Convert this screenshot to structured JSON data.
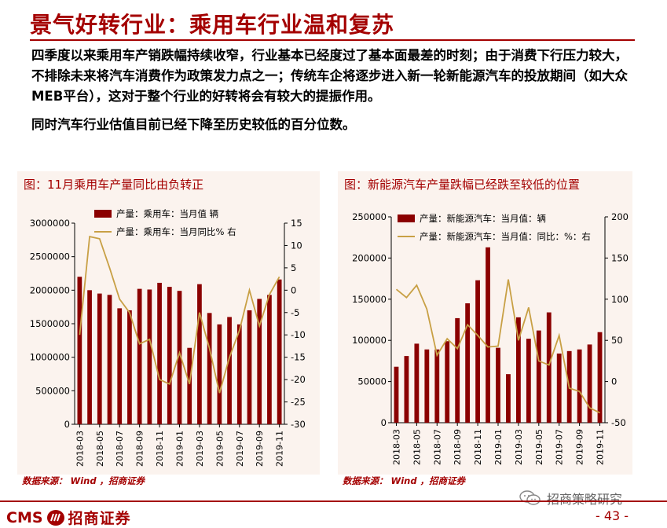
{
  "title": "景气好转行业：乘用车行业温和复苏",
  "paragraph1": "四季度以来乘用车产销跌幅持续收窄，行业基本已经度过了基本面最差的时刻；由于消费下行压力较大，不排除未来将汽车消费作为政策发力点之一；传统车企将逐步进入新一轮新能源汽车的投放期间（如大众MEB平台），这对于整个行业的好转将会有较大的提振作用。",
  "paragraph2": "同时汽车行业估值目前已经下降至历史较低的百分位数。",
  "source_left": "数据来源： Wind ，招商证券",
  "source_right": "数据来源： Wind ，招商证券",
  "wechat_label": "招商策略研究",
  "brand_latin": "CMS",
  "brand_name": "招商证券",
  "page_number": "- 43 -",
  "colors": {
    "brand": "#a40000",
    "bar": "#8b0000",
    "line": "#c8a045",
    "panel_bg": "#fbf3ee"
  },
  "chart_data": [
    {
      "type": "bar",
      "title": "图：11月乘用车产量同比由负转正",
      "legend": [
        "产量：乘用车：当月值  辆",
        "产量：乘用车：当月同比%  右"
      ],
      "categories": [
        "2018-03",
        "2018-04",
        "2018-05",
        "2018-06",
        "2018-07",
        "2018-08",
        "2018-09",
        "2018-10",
        "2018-11",
        "2018-12",
        "2019-01",
        "2019-02",
        "2019-03",
        "2019-04",
        "2019-05",
        "2019-06",
        "2019-07",
        "2019-08",
        "2019-09",
        "2019-10",
        "2019-11"
      ],
      "tick_labels": [
        "2018-03",
        "2018-05",
        "2018-07",
        "2018-09",
        "2018-11",
        "2019-01",
        "2019-03",
        "2019-05",
        "2019-07",
        "2019-09",
        "2019-11"
      ],
      "series": [
        {
          "name": "产量：乘用车：当月值  辆",
          "kind": "bar",
          "axis": "left",
          "values": [
            2200000,
            2000000,
            1950000,
            1930000,
            1730000,
            1700000,
            2020000,
            2010000,
            2110000,
            2050000,
            1990000,
            1140000,
            2090000,
            1660000,
            1490000,
            1600000,
            1490000,
            1700000,
            1870000,
            1930000,
            2160000
          ]
        },
        {
          "name": "产量：乘用车：当月同比%  右",
          "kind": "line",
          "axis": "right",
          "values": [
            -10,
            12,
            11.5,
            5,
            -2,
            -5,
            -12,
            -11,
            -20,
            -21,
            -14,
            -21,
            -5,
            -13,
            -23,
            -15,
            -9,
            0,
            -8,
            -1,
            3
          ]
        }
      ],
      "ylim_left": [
        0,
        3000000
      ],
      "yticks_left": [
        "0",
        "500000",
        "1000000",
        "1500000",
        "2000000",
        "2500000",
        "3000000"
      ],
      "ylim_right": [
        -30,
        15
      ],
      "yticks_right": [
        "15",
        "10",
        "5",
        "0",
        "-5",
        "-10",
        "-15",
        "-20",
        "-25",
        "-30"
      ]
    },
    {
      "type": "bar",
      "title": "图：新能源汽车产量跌幅已经跌至较低的位置",
      "legend": [
        "产量：新能源汽车：当月值：辆",
        "产量：新能源汽车：当月值：同比：%：右"
      ],
      "categories": [
        "2018-03",
        "2018-04",
        "2018-05",
        "2018-06",
        "2018-07",
        "2018-08",
        "2018-09",
        "2018-10",
        "2018-11",
        "2018-12",
        "2019-01",
        "2019-02",
        "2019-03",
        "2019-04",
        "2019-05",
        "2019-06",
        "2019-07",
        "2019-08",
        "2019-09",
        "2019-10",
        "2019-11"
      ],
      "tick_labels": [
        "2018-03",
        "2018-05",
        "2018-07",
        "2018-09",
        "2018-11",
        "2019-01",
        "2019-03",
        "2019-05",
        "2019-07",
        "2019-09",
        "2019-11"
      ],
      "series": [
        {
          "name": "产量：新能源汽车：当月值：辆",
          "kind": "bar",
          "axis": "left",
          "values": [
            68000,
            81000,
            96000,
            89000,
            89000,
            99000,
            127000,
            145000,
            173000,
            213000,
            91000,
            59000,
            128000,
            102000,
            112000,
            134000,
            84000,
            87000,
            89000,
            95000,
            110000
          ]
        },
        {
          "name": "产量：新能源汽车：当月值：同比：%：右",
          "kind": "line",
          "axis": "right",
          "values": [
            112,
            102,
            117,
            88,
            32,
            52,
            40,
            69,
            56,
            42,
            43,
            124,
            50,
            90,
            25,
            20,
            56,
            -8,
            -12,
            -32,
            -38
          ]
        }
      ],
      "ylim_left": [
        0,
        250000
      ],
      "yticks_left": [
        "0",
        "50000",
        "100000",
        "150000",
        "200000",
        "250000"
      ],
      "ylim_right": [
        -50,
        200
      ],
      "yticks_right": [
        "200",
        "150",
        "100",
        "50",
        "0",
        "-50"
      ]
    }
  ]
}
